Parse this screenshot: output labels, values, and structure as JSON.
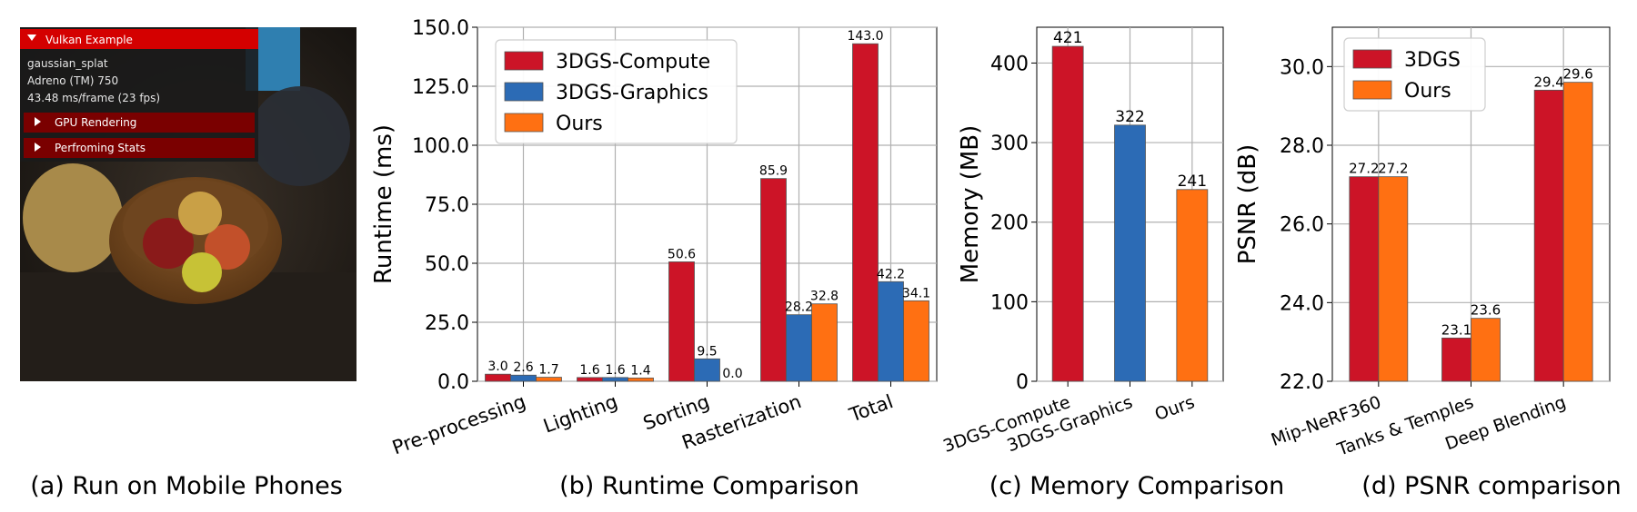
{
  "phone": {
    "window_title": "Vulkan Example",
    "app_name": "gaussian_splat",
    "gpu": "Adreno (TM) 750",
    "fps": "43.48 ms/frame (23 fps)",
    "section_gpu": "GPU Rendering",
    "section_stats": "Perfroming Stats",
    "caption": "(a) Run on Mobile Phones",
    "colors": {
      "panel": "#1a1a1a",
      "header": "#d40000",
      "row": "#7a0000"
    }
  },
  "chart_data": [
    {
      "type": "bar",
      "title": "",
      "caption": "(b) Runtime Comparison",
      "xlabel": "",
      "ylabel": "Runtime (ms)",
      "ylim": [
        0,
        150
      ],
      "yticks": [
        "0.0",
        "25.0",
        "50.0",
        "75.0",
        "100.0",
        "125.0",
        "150.0"
      ],
      "yticks_values": [
        0,
        25,
        50,
        75,
        100,
        125,
        150
      ],
      "grid": true,
      "legend_position": "top-left",
      "categories": [
        "Pre-processing",
        "Lighting",
        "Sorting",
        "Rasterization",
        "Total"
      ],
      "series": [
        {
          "name": "3DGS-Compute",
          "color": "#cc1427",
          "values": [
            3.0,
            1.6,
            50.6,
            85.9,
            143.0
          ],
          "labels": [
            "3.0",
            "1.6",
            "50.6",
            "85.9",
            "143.0"
          ]
        },
        {
          "name": "3DGS-Graphics",
          "color": "#2c6bb5",
          "values": [
            2.6,
            1.6,
            9.5,
            28.2,
            42.2
          ],
          "labels": [
            "2.6",
            "1.6",
            "9.5",
            "28.2",
            "42.2"
          ]
        },
        {
          "name": "Ours",
          "color": "#ff7012",
          "values": [
            1.7,
            1.4,
            0.0,
            32.8,
            34.1
          ],
          "labels": [
            "1.7",
            "1.4",
            "0.0",
            "32.8",
            "34.1"
          ]
        }
      ]
    },
    {
      "type": "bar",
      "title": "",
      "caption": "(c) Memory Comparison",
      "xlabel": "",
      "ylabel": "Memory (MB)",
      "ylim": [
        0,
        445
      ],
      "yticks": [
        "0",
        "100",
        "200",
        "300",
        "400"
      ],
      "yticks_values": [
        0,
        100,
        200,
        300,
        400
      ],
      "grid": true,
      "legend_position": "none",
      "categories": [
        "3DGS-Compute",
        "3DGS-Graphics",
        "Ours"
      ],
      "values": [
        421,
        322,
        241
      ],
      "labels": [
        "421",
        "322",
        "241"
      ],
      "colors": [
        "#cc1427",
        "#2c6bb5",
        "#ff7012"
      ]
    },
    {
      "type": "bar",
      "title": "",
      "caption": "(d) PSNR comparison",
      "xlabel": "",
      "ylabel": "PSNR (dB)",
      "ylim": [
        22,
        31
      ],
      "yticks": [
        "22.0",
        "24.0",
        "26.0",
        "28.0",
        "30.0"
      ],
      "yticks_values": [
        22,
        24,
        26,
        28,
        30
      ],
      "grid": true,
      "legend_position": "top-left",
      "categories": [
        "Mip-NeRF360",
        "Tanks & Temples",
        "Deep Blending"
      ],
      "series": [
        {
          "name": "3DGS",
          "color": "#cc1427",
          "values": [
            27.2,
            23.1,
            29.4
          ],
          "labels": [
            "27.2",
            "23.1",
            "29.4"
          ]
        },
        {
          "name": "Ours",
          "color": "#ff7012",
          "values": [
            27.2,
            23.6,
            29.6
          ],
          "labels": [
            "27.2",
            "23.6",
            "29.6"
          ]
        }
      ]
    }
  ]
}
